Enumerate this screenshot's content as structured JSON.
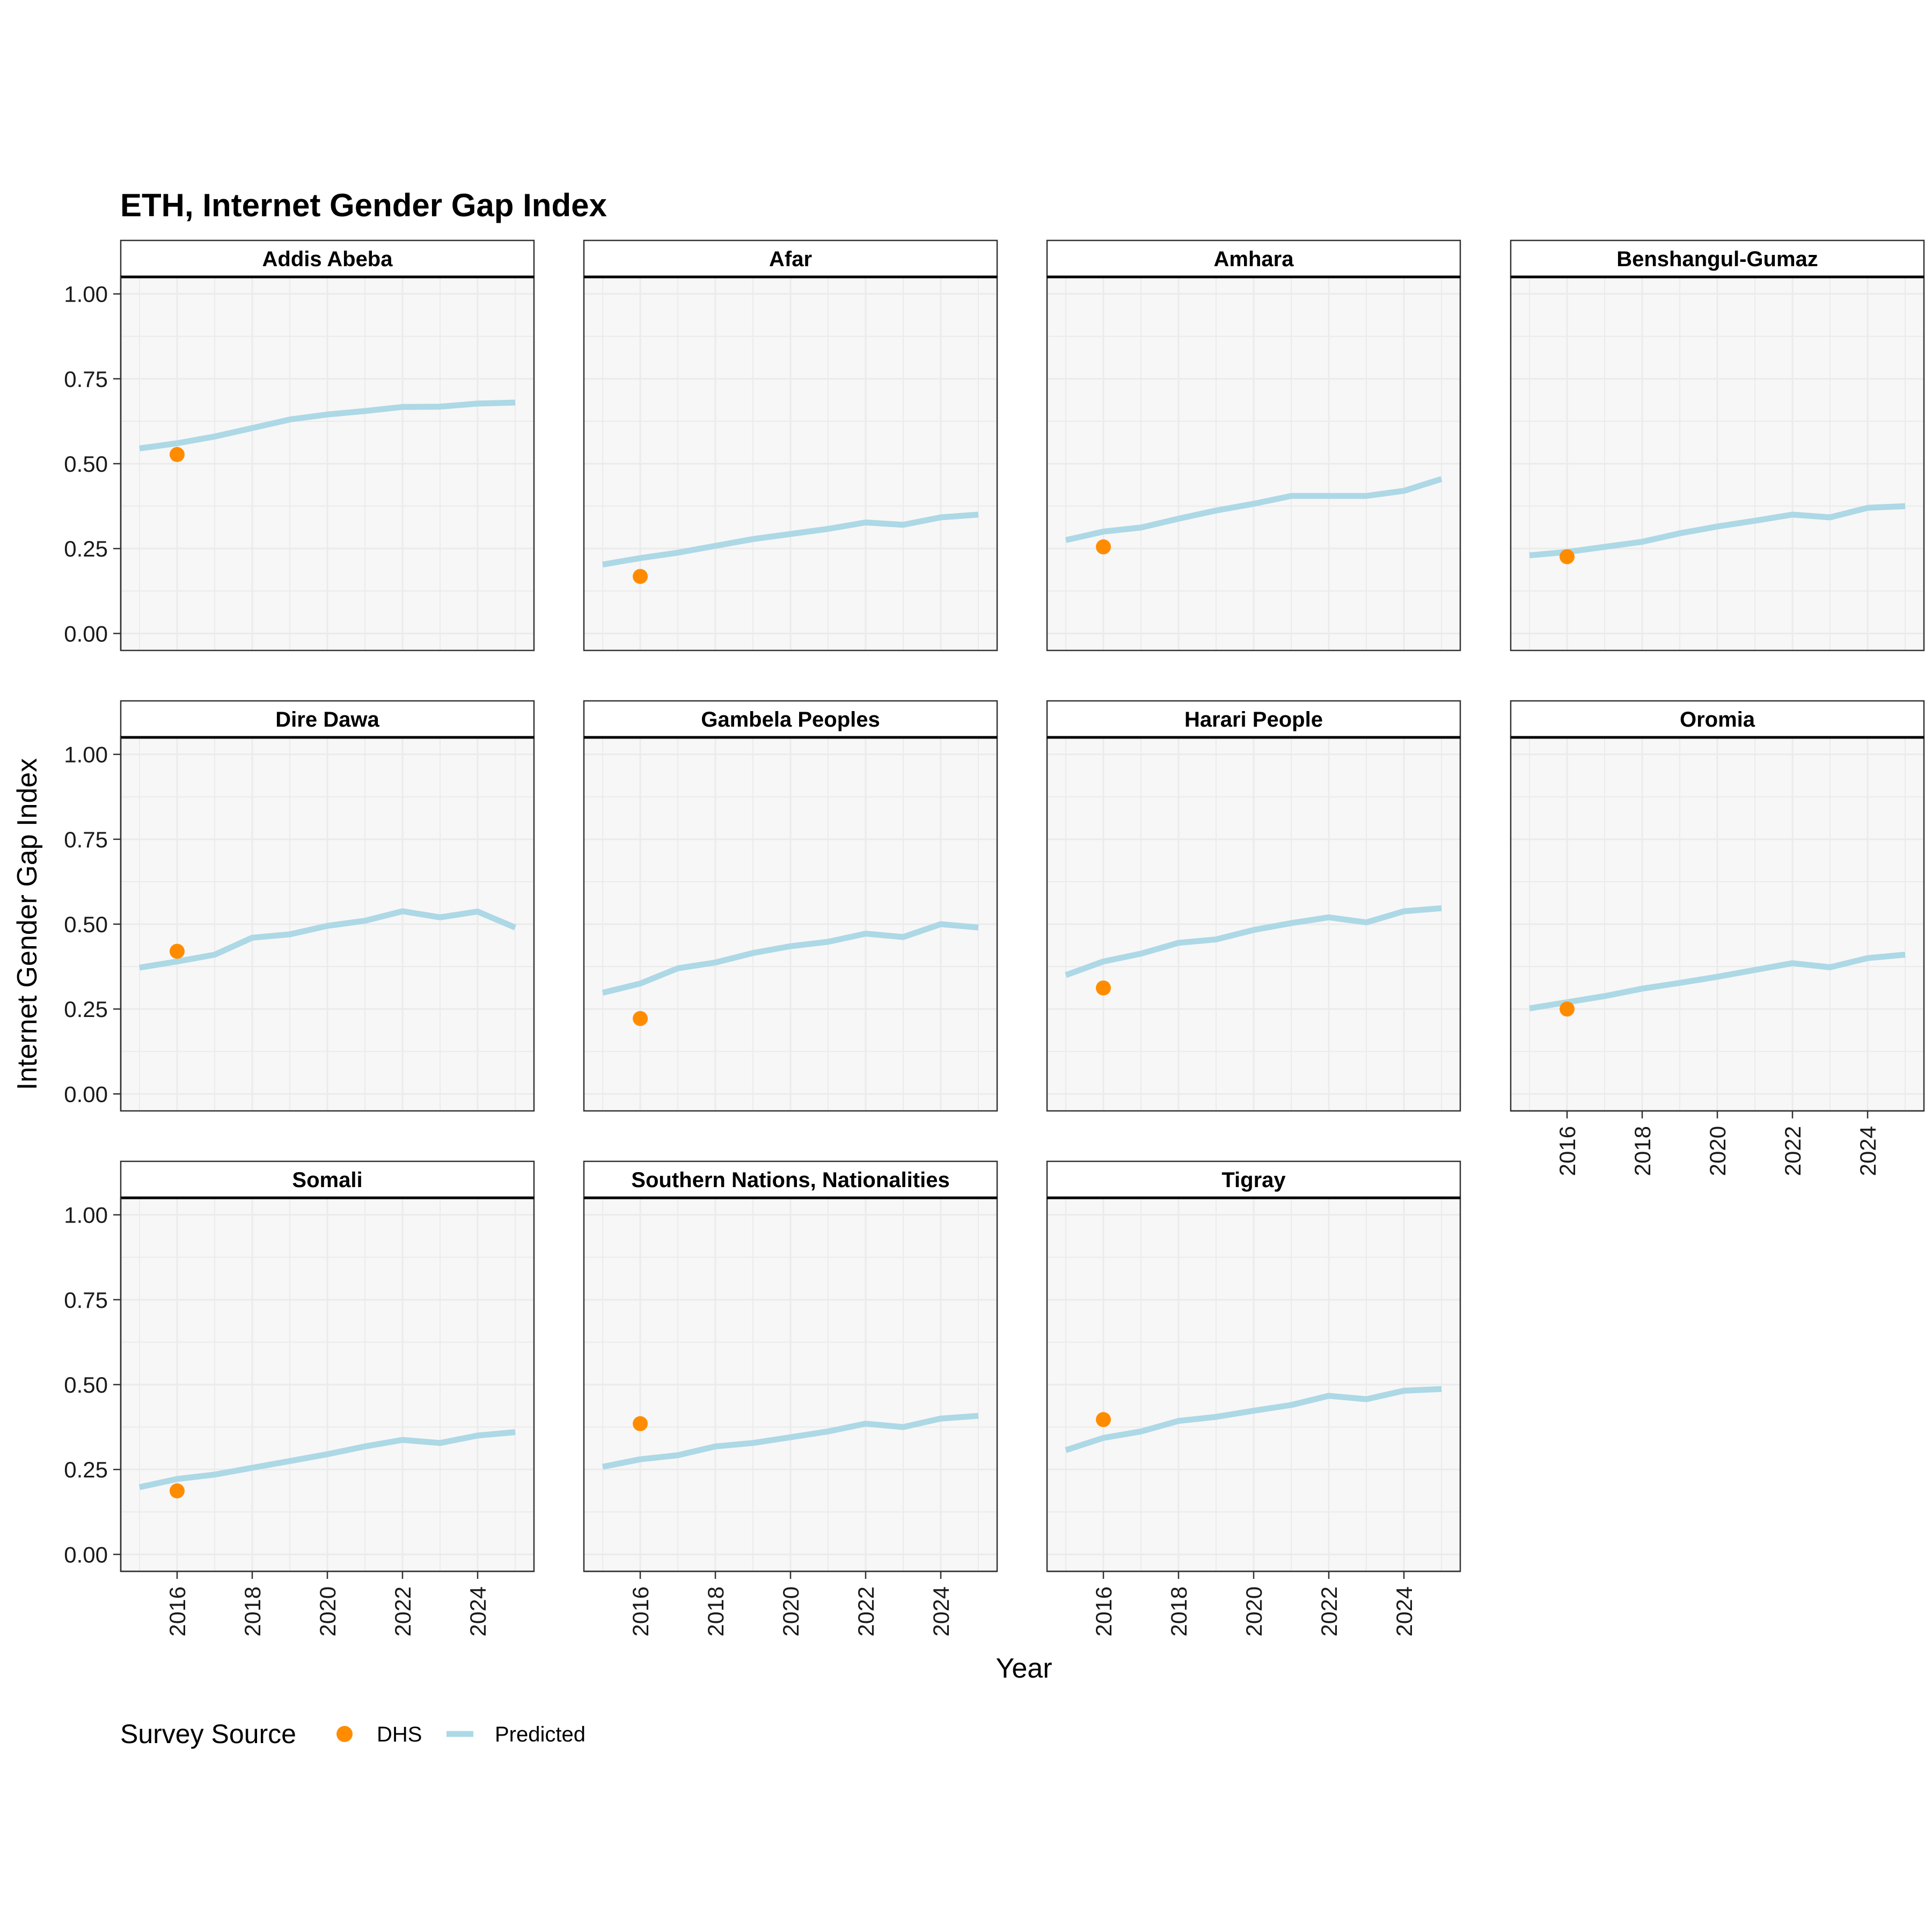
{
  "chart_data": {
    "type": "line",
    "title": "ETH, Internet Gender Gap Index",
    "xlabel": "Year",
    "ylabel": "Internet Gender Gap Index",
    "x": [
      2015,
      2016,
      2017,
      2018,
      2019,
      2020,
      2021,
      2022,
      2023,
      2024,
      2025
    ],
    "xlim": [
      2014.5,
      2025.5
    ],
    "ylim": [
      -0.05,
      1.05
    ],
    "x_ticks": [
      2016,
      2018,
      2020,
      2022,
      2024
    ],
    "x_tick_labels": [
      "2016",
      "2018",
      "2020",
      "2022",
      "2024"
    ],
    "y_ticks": [
      0,
      0.25,
      0.5,
      0.75,
      1
    ],
    "y_tick_labels": [
      "0.00",
      "0.25",
      "0.50",
      "0.75",
      "1.00"
    ],
    "colors": {
      "dhs": "#FF8C00",
      "predicted": "#ADD8E6",
      "panel_bg": "#F7F7F7",
      "grid": "#EBEBEB"
    },
    "legend": {
      "title": "Survey Source",
      "position": "bottom-left",
      "entries": [
        {
          "label": "DHS",
          "kind": "point",
          "color": "#FF8C00"
        },
        {
          "label": "Predicted",
          "kind": "line",
          "color": "#ADD8E6"
        }
      ]
    },
    "panels": [
      {
        "name": "Addis Abeba",
        "dhs": {
          "x": 2016,
          "y": 0.527
        },
        "predicted": [
          0.545,
          0.56,
          0.58,
          0.605,
          0.63,
          0.645,
          0.655,
          0.667,
          0.668,
          0.677,
          0.68
        ]
      },
      {
        "name": "Afar",
        "dhs": {
          "x": 2016,
          "y": 0.168
        },
        "predicted": [
          0.203,
          0.222,
          0.238,
          0.258,
          0.278,
          0.293,
          0.308,
          0.327,
          0.32,
          0.342,
          0.35
        ]
      },
      {
        "name": "Amhara",
        "dhs": {
          "x": 2016,
          "y": 0.255
        },
        "predicted": [
          0.275,
          0.3,
          0.312,
          0.338,
          0.362,
          0.382,
          0.405,
          0.405,
          0.405,
          0.42,
          0.455
        ]
      },
      {
        "name": "Benshangul-Gumaz",
        "dhs": {
          "x": 2016,
          "y": 0.226
        },
        "predicted": [
          0.23,
          0.24,
          0.255,
          0.27,
          0.295,
          0.315,
          0.332,
          0.35,
          0.342,
          0.37,
          0.375
        ]
      },
      {
        "name": "Dire Dawa",
        "dhs": {
          "x": 2016,
          "y": 0.42
        },
        "predicted": [
          0.372,
          0.39,
          0.41,
          0.46,
          0.47,
          0.495,
          0.51,
          0.538,
          0.52,
          0.537,
          0.49
        ]
      },
      {
        "name": "Gambela Peoples",
        "dhs": {
          "x": 2016,
          "y": 0.222
        },
        "predicted": [
          0.298,
          0.325,
          0.37,
          0.387,
          0.415,
          0.435,
          0.448,
          0.472,
          0.462,
          0.5,
          0.49
        ]
      },
      {
        "name": "Harari People",
        "dhs": {
          "x": 2016,
          "y": 0.312
        },
        "predicted": [
          0.35,
          0.39,
          0.413,
          0.445,
          0.455,
          0.483,
          0.503,
          0.52,
          0.505,
          0.538,
          0.547
        ]
      },
      {
        "name": "Oromia",
        "dhs": {
          "x": 2016,
          "y": 0.25
        },
        "predicted": [
          0.252,
          0.27,
          0.288,
          0.31,
          0.327,
          0.345,
          0.365,
          0.385,
          0.373,
          0.4,
          0.41
        ]
      },
      {
        "name": "Somali",
        "dhs": {
          "x": 2016,
          "y": 0.187
        },
        "predicted": [
          0.198,
          0.222,
          0.235,
          0.255,
          0.275,
          0.295,
          0.318,
          0.337,
          0.328,
          0.35,
          0.36
        ]
      },
      {
        "name": "Southern Nations, Nationalities",
        "dhs": {
          "x": 2016,
          "y": 0.385
        },
        "predicted": [
          0.258,
          0.28,
          0.292,
          0.318,
          0.328,
          0.345,
          0.362,
          0.385,
          0.375,
          0.4,
          0.408
        ]
      },
      {
        "name": "Tigray",
        "dhs": {
          "x": 2016,
          "y": 0.397
        },
        "predicted": [
          0.307,
          0.343,
          0.362,
          0.393,
          0.405,
          0.423,
          0.44,
          0.467,
          0.457,
          0.482,
          0.487
        ]
      }
    ]
  }
}
